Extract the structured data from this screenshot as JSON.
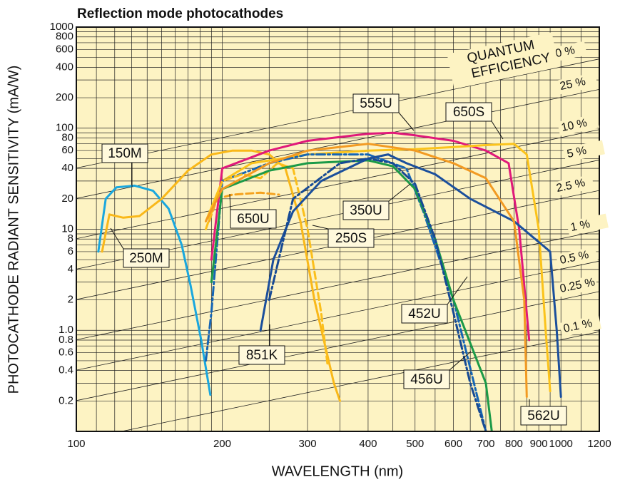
{
  "chart_data": {
    "type": "line",
    "title": "Reflection mode photocathodes",
    "xlabel": "WAVELENGTH (nm)",
    "ylabel": "PHOTOCATHODE RADIANT SENSITIVITY (mA/W)",
    "annotation": "QUANTUM EFFICIENCY",
    "xlog": true,
    "ylog": true,
    "grid": true,
    "xlim": [
      100,
      1200
    ],
    "ylim": [
      0.1,
      1000
    ],
    "xticks": [
      100,
      200,
      300,
      400,
      500,
      600,
      700,
      800,
      900,
      1000,
      1200
    ],
    "xminor": [
      110,
      120,
      130,
      140,
      150,
      160,
      170,
      180,
      190,
      250,
      350,
      450,
      550,
      650,
      750,
      850,
      950,
      1100
    ],
    "yticks": [
      1000,
      800,
      600,
      400,
      200,
      100,
      80,
      60,
      40,
      20,
      10,
      8,
      6,
      4,
      2,
      {
        "value": 1,
        "label": "1.0"
      },
      0.8,
      0.6,
      0.4,
      0.2
    ],
    "yminor": [
      900,
      700,
      500,
      300,
      90,
      70,
      50,
      30,
      9,
      7,
      5,
      3,
      0.9,
      0.7,
      0.5,
      0.3
    ],
    "efficiency_lines": [
      {
        "value": 50,
        "label": "50 %"
      },
      {
        "value": 25,
        "label": "25 %"
      },
      {
        "value": 10,
        "label": "10 %"
      },
      {
        "value": 5,
        "label": "5 %"
      },
      {
        "value": 2.5,
        "label": "2.5 %"
      },
      {
        "value": 1,
        "label": "1 %"
      },
      {
        "value": 0.5,
        "label": "0.5 %"
      },
      {
        "value": 0.25,
        "label": "0.25 %"
      },
      {
        "value": 0.1,
        "label": "0.1 %"
      }
    ],
    "series": [
      {
        "name": "150M",
        "color": "#1aa7de",
        "dash": "solid",
        "x": [
          111,
          115,
          121,
          132,
          144,
          155,
          165,
          172,
          181,
          189
        ],
        "values": [
          6,
          20,
          26,
          27,
          24,
          16,
          7,
          2.8,
          0.8,
          0.23
        ]
      },
      {
        "name": "250M",
        "color": "#f9b819",
        "dash": "solid",
        "x": [
          113,
          117,
          125,
          135,
          150,
          170,
          190,
          210,
          230,
          250,
          270,
          290,
          310,
          340,
          350
        ],
        "values": [
          6,
          14,
          13,
          13.5,
          20,
          38,
          55,
          60,
          60,
          55,
          40,
          12,
          2,
          0.3,
          0.2
        ]
      },
      {
        "name": "650U",
        "color": "#f4a21f",
        "dash": "dashed",
        "x": [
          188,
          195,
          210,
          240,
          262
        ],
        "values": [
          12,
          20,
          22,
          23,
          22
        ]
      },
      {
        "name": "555U",
        "color": "#e0197a",
        "dash": "solid",
        "x": [
          190,
          200,
          250,
          300,
          400,
          450,
          500,
          600,
          700,
          780,
          820,
          860
        ],
        "values": [
          5,
          40,
          60,
          75,
          88,
          90,
          85,
          75,
          60,
          45,
          10,
          0.8
        ]
      },
      {
        "name": "650S",
        "color": "#fbc31b",
        "dash": "solid",
        "x": [
          185,
          200,
          230,
          300,
          400,
          500,
          600,
          700,
          800,
          850,
          900,
          930,
          950
        ],
        "values": [
          12,
          30,
          45,
          55,
          60,
          62,
          65,
          68,
          70,
          55,
          10,
          1,
          0.25
        ]
      },
      {
        "name": "350U",
        "color": "#1565b5",
        "dash": "dashdot",
        "x": [
          185,
          190,
          200,
          250,
          300,
          400,
          480,
          520,
          600,
          700
        ],
        "values": [
          0.5,
          1.5,
          30,
          45,
          55,
          55,
          40,
          15,
          2,
          0.1
        ]
      },
      {
        "name": "250S",
        "color": "#fbbf1b",
        "dash": "dashed",
        "x": [
          185,
          200,
          220,
          240,
          260,
          280,
          300,
          320,
          330
        ],
        "values": [
          10,
          30,
          35,
          32,
          45,
          40,
          10,
          1.5,
          0.45
        ]
      },
      {
        "name": "452U",
        "color": "#1c9a48",
        "dash": "solid",
        "x": [
          190,
          200,
          250,
          300,
          400,
          450,
          500,
          550,
          600,
          700,
          720
        ],
        "values": [
          3,
          25,
          38,
          45,
          48,
          42,
          25,
          8,
          2,
          0.3,
          0.1
        ]
      },
      {
        "name": "851K",
        "color": "#1b4f9c",
        "dash": "solid",
        "x": [
          240,
          255,
          280,
          320,
          400,
          440,
          480,
          550,
          650,
          800,
          950,
          980,
          1000
        ],
        "values": [
          1,
          5,
          15,
          30,
          50,
          55,
          45,
          35,
          20,
          12,
          6,
          1,
          0.22
        ]
      },
      {
        "name": "456U",
        "color": "#174a94",
        "dash": "dashdot",
        "x": [
          250,
          280,
          350,
          400,
          450,
          500,
          550,
          600,
          650,
          700
        ],
        "values": [
          2,
          20,
          45,
          50,
          45,
          28,
          8,
          1.5,
          0.3,
          0.1
        ]
      },
      {
        "name": "562U",
        "color": "#f29a22",
        "dash": "solid",
        "x": [
          185,
          200,
          250,
          300,
          400,
          500,
          600,
          700,
          800,
          840,
          850
        ],
        "values": [
          12,
          25,
          45,
          60,
          70,
          60,
          45,
          32,
          12,
          2,
          0.22
        ]
      }
    ]
  }
}
